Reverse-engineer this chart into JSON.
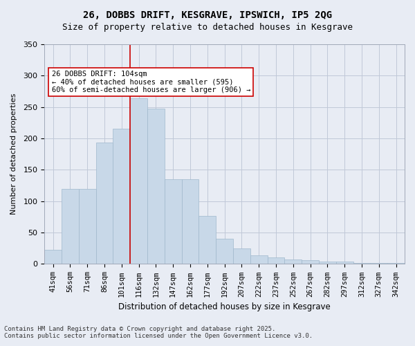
{
  "title_line1": "26, DOBBS DRIFT, KESGRAVE, IPSWICH, IP5 2QG",
  "title_line2": "Size of property relative to detached houses in Kesgrave",
  "xlabel": "Distribution of detached houses by size in Kesgrave",
  "ylabel": "Number of detached properties",
  "categories": [
    "41sqm",
    "56sqm",
    "71sqm",
    "86sqm",
    "101sqm",
    "116sqm",
    "132sqm",
    "147sqm",
    "162sqm",
    "177sqm",
    "192sqm",
    "207sqm",
    "222sqm",
    "237sqm",
    "252sqm",
    "267sqm",
    "282sqm",
    "297sqm",
    "312sqm",
    "327sqm",
    "342sqm"
  ],
  "values": [
    22,
    120,
    120,
    193,
    215,
    264,
    248,
    135,
    135,
    77,
    40,
    25,
    14,
    10,
    7,
    6,
    4,
    4,
    2,
    2,
    2
  ],
  "bar_color": "#c8d8e8",
  "bar_edge_color": "#a0b8cc",
  "grid_color": "#c0c8d8",
  "background_color": "#e8ecf4",
  "vline_x": 4.5,
  "vline_color": "#cc0000",
  "annotation_text": "26 DOBBS DRIFT: 104sqm\n← 40% of detached houses are smaller (595)\n60% of semi-detached houses are larger (906) →",
  "annotation_box_color": "#ffffff",
  "annotation_box_edge": "#cc0000",
  "ylim": [
    0,
    350
  ],
  "yticks": [
    0,
    50,
    100,
    150,
    200,
    250,
    300,
    350
  ],
  "footer_line1": "Contains HM Land Registry data © Crown copyright and database right 2025.",
  "footer_line2": "Contains public sector information licensed under the Open Government Licence v3.0."
}
